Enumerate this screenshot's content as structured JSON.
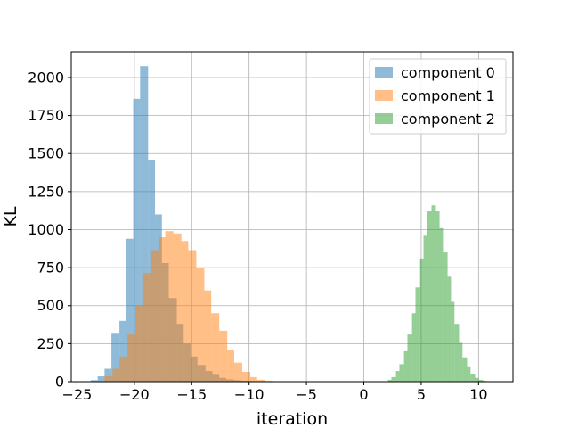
{
  "chart_data": {
    "type": "bar",
    "subtype": "histogram",
    "title": "",
    "xlabel": "iteration",
    "ylabel": "KL",
    "xlim": [
      -25.5,
      13.0
    ],
    "ylim": [
      0,
      2170
    ],
    "xticks": [
      -25,
      -20,
      -15,
      -10,
      -5,
      0,
      5,
      10
    ],
    "xtick_labels": [
      "−25",
      "−20",
      "−15",
      "−10",
      "−5",
      "0",
      "5",
      "10"
    ],
    "yticks": [
      0,
      250,
      500,
      750,
      1000,
      1250,
      1500,
      1750,
      2000
    ],
    "ytick_labels": [
      "0",
      "250",
      "500",
      "750",
      "1000",
      "1250",
      "1500",
      "1750",
      "2000"
    ],
    "grid": true,
    "legend_position": "top-right",
    "bar_alpha": 0.5,
    "series": [
      {
        "name": "component 0",
        "color": "#1f77b4",
        "bins": [
          [
            -23.8,
            -23.2,
            10
          ],
          [
            -23.2,
            -22.6,
            35
          ],
          [
            -22.6,
            -22.0,
            85
          ],
          [
            -22.0,
            -21.3,
            315
          ],
          [
            -21.3,
            -20.7,
            400
          ],
          [
            -20.7,
            -20.1,
            940
          ],
          [
            -20.1,
            -19.5,
            1860
          ],
          [
            -19.5,
            -18.8,
            2075
          ],
          [
            -18.8,
            -18.2,
            1460
          ],
          [
            -18.2,
            -17.6,
            1100
          ],
          [
            -17.6,
            -17.0,
            780
          ],
          [
            -17.0,
            -16.3,
            550
          ],
          [
            -16.3,
            -15.7,
            380
          ],
          [
            -15.7,
            -15.1,
            250
          ],
          [
            -15.1,
            -14.5,
            165
          ],
          [
            -14.5,
            -13.8,
            110
          ],
          [
            -13.8,
            -13.2,
            70
          ],
          [
            -13.2,
            -12.6,
            45
          ],
          [
            -12.6,
            -12.0,
            25
          ],
          [
            -12.0,
            -11.3,
            15
          ],
          [
            -11.3,
            -10.7,
            10
          ],
          [
            -10.7,
            -10.1,
            6
          ],
          [
            -10.1,
            -9.5,
            4
          ],
          [
            -9.5,
            -8.8,
            3
          ],
          [
            -8.8,
            -8.2,
            2
          ],
          [
            -6.7,
            -6.1,
            2
          ]
        ]
      },
      {
        "name": "component 1",
        "color": "#ff7f0e",
        "bins": [
          [
            -22.6,
            -21.9,
            35
          ],
          [
            -21.9,
            -21.3,
            85
          ],
          [
            -21.3,
            -20.6,
            165
          ],
          [
            -20.6,
            -19.9,
            310
          ],
          [
            -19.9,
            -19.3,
            500
          ],
          [
            -19.3,
            -18.6,
            715
          ],
          [
            -18.6,
            -17.9,
            865
          ],
          [
            -17.9,
            -17.3,
            950
          ],
          [
            -17.3,
            -16.6,
            990
          ],
          [
            -16.6,
            -15.9,
            975
          ],
          [
            -15.9,
            -15.3,
            925
          ],
          [
            -15.3,
            -14.6,
            865
          ],
          [
            -14.6,
            -13.9,
            745
          ],
          [
            -13.9,
            -13.3,
            600
          ],
          [
            -13.3,
            -12.6,
            450
          ],
          [
            -12.6,
            -11.9,
            335
          ],
          [
            -11.9,
            -11.3,
            205
          ],
          [
            -11.3,
            -10.6,
            125
          ],
          [
            -10.6,
            -9.9,
            65
          ],
          [
            -9.9,
            -9.3,
            30
          ],
          [
            -9.3,
            -8.6,
            12
          ],
          [
            -8.6,
            -7.9,
            5
          ]
        ]
      },
      {
        "name": "component 2",
        "color": "#2ca02c",
        "bins": [
          [
            2.1,
            2.4,
            12
          ],
          [
            2.4,
            2.8,
            30
          ],
          [
            2.8,
            3.1,
            70
          ],
          [
            3.1,
            3.5,
            115
          ],
          [
            3.5,
            3.8,
            200
          ],
          [
            3.8,
            4.2,
            310
          ],
          [
            4.2,
            4.5,
            450
          ],
          [
            4.5,
            4.9,
            620
          ],
          [
            4.9,
            5.2,
            810
          ],
          [
            5.2,
            5.5,
            960
          ],
          [
            5.5,
            5.9,
            1120
          ],
          [
            5.9,
            6.2,
            1160
          ],
          [
            6.2,
            6.6,
            1120
          ],
          [
            6.6,
            6.9,
            1010
          ],
          [
            6.9,
            7.3,
            850
          ],
          [
            7.3,
            7.6,
            690
          ],
          [
            7.6,
            7.9,
            525
          ],
          [
            7.9,
            8.3,
            380
          ],
          [
            8.3,
            8.6,
            255
          ],
          [
            8.6,
            9.0,
            160
          ],
          [
            9.0,
            9.3,
            95
          ],
          [
            9.3,
            9.7,
            50
          ],
          [
            9.7,
            10.0,
            25
          ],
          [
            10.0,
            10.4,
            12
          ],
          [
            10.4,
            10.7,
            5
          ]
        ]
      }
    ]
  }
}
